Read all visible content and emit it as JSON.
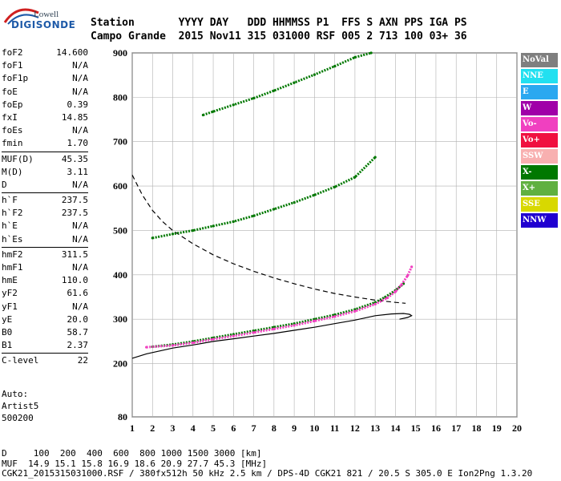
{
  "logo": {
    "line1": "Lowell",
    "line2": "DIGISONDE"
  },
  "header": {
    "labels": "Station       YYYY DAY   DDD HHMMSS P1  FFS S AXN PPS IGA PS",
    "values": "Campo Grande  2015 Nov11 315 031000 RSF 005 2 713 100 03+ 36"
  },
  "params": [
    {
      "key": "foF2",
      "value": "14.600"
    },
    {
      "key": "foF1",
      "value": "N/A"
    },
    {
      "key": "foF1p",
      "value": "N/A"
    },
    {
      "key": "foE",
      "value": "N/A"
    },
    {
      "key": "foEp",
      "value": "0.39"
    },
    {
      "key": "fxI",
      "value": "14.85"
    },
    {
      "key": "foEs",
      "value": "N/A"
    },
    {
      "key": "fmin",
      "value": "1.70"
    },
    {
      "key": "MUF(D)",
      "value": "45.35"
    },
    {
      "key": "M(D)",
      "value": "3.11"
    },
    {
      "key": "D",
      "value": "N/A"
    },
    {
      "key": "h`F",
      "value": "237.5"
    },
    {
      "key": "h`F2",
      "value": "237.5"
    },
    {
      "key": "h`E",
      "value": "N/A"
    },
    {
      "key": "h`Es",
      "value": "N/A"
    },
    {
      "key": "hmF2",
      "value": "311.5"
    },
    {
      "key": "hmF1",
      "value": "N/A"
    },
    {
      "key": "hmE",
      "value": "110.0"
    },
    {
      "key": "yF2",
      "value": "61.6"
    },
    {
      "key": "yF1",
      "value": "N/A"
    },
    {
      "key": "yE",
      "value": "20.0"
    },
    {
      "key": "B0",
      "value": "58.7"
    },
    {
      "key": "B1",
      "value": "2.37"
    },
    {
      "key": "C-level",
      "value": "22"
    }
  ],
  "auto": {
    "line1": "Auto:",
    "line2": "Artist5",
    "line3": "500200"
  },
  "legend": [
    {
      "label": "NoVal",
      "color": "#7f7f7f"
    },
    {
      "label": "NNE",
      "color": "#22e0f0"
    },
    {
      "label": "E",
      "color": "#2aa8f0"
    },
    {
      "label": "W",
      "color": "#a000a8"
    },
    {
      "label": "Vo-",
      "color": "#f040c0"
    },
    {
      "label": "Vo+",
      "color": "#f01040"
    },
    {
      "label": "SSW",
      "color": "#f8b0b0"
    },
    {
      "label": "X-",
      "color": "#007800"
    },
    {
      "label": "X+",
      "color": "#60b040"
    },
    {
      "label": "SSE",
      "color": "#d8d800"
    },
    {
      "label": "NNW",
      "color": "#2000d0"
    }
  ],
  "footer": {
    "line1": "D     100  200  400  600  800 1000 1500 3000 [km]",
    "line2": "MUF  14.9 15.1 15.8 16.9 18.6 20.9 27.7 45.3 [MHz]",
    "line3": "CGK21_2015315031000.RSF / 380fx512h 50 kHz 2.5 km / DPS-4D CGK21 821 / 20.5 S 305.0 E Ion2Png 1.3.20"
  },
  "chart_data": {
    "type": "scatter",
    "xlim": [
      1,
      20
    ],
    "ylim": [
      80,
      900
    ],
    "xticks": [
      1,
      2,
      3,
      4,
      5,
      6,
      7,
      8,
      9,
      10,
      11,
      12,
      13,
      14,
      15,
      16,
      17,
      18,
      19,
      20
    ],
    "yticks": [
      80,
      200,
      300,
      400,
      500,
      600,
      700,
      800,
      900
    ],
    "grid": true,
    "series": [
      {
        "name": "X-",
        "color": "#007800",
        "x": [
          2.0,
          3.0,
          4.0,
          5.0,
          6.0,
          7.0,
          8.0,
          9.0,
          10.0,
          11.0,
          12.0,
          13.0,
          13.5,
          14.0,
          14.4
        ],
        "y": [
          238,
          243,
          250,
          258,
          266,
          274,
          282,
          290,
          300,
          310,
          322,
          338,
          350,
          365,
          380
        ]
      },
      {
        "name": "Vo-",
        "color": "#f040c0",
        "x": [
          1.7,
          3.0,
          4.0,
          5.0,
          6.0,
          7.0,
          8.0,
          9.0,
          10.0,
          11.0,
          12.0,
          13.0,
          13.6,
          14.0,
          14.3,
          14.6,
          14.8
        ],
        "y": [
          237,
          241,
          247,
          255,
          262,
          270,
          278,
          286,
          296,
          306,
          318,
          334,
          348,
          362,
          378,
          398,
          418
        ]
      },
      {
        "name": "X-",
        "color": "#007800",
        "x": [
          2.0,
          3.0,
          4.0,
          5.0,
          6.0,
          7.0,
          8.0,
          9.0,
          10.0,
          11.0,
          12.0,
          13.0
        ],
        "y": [
          483,
          492,
          500,
          510,
          520,
          533,
          548,
          563,
          580,
          598,
          620,
          665
        ]
      },
      {
        "name": "X-",
        "color": "#007800",
        "x": [
          4.5,
          5.0,
          6.0,
          7.0,
          8.0,
          9.0,
          10.0,
          11.0,
          12.0,
          12.8
        ],
        "y": [
          760,
          768,
          783,
          798,
          815,
          833,
          851,
          870,
          890,
          900
        ]
      }
    ],
    "lines": [
      {
        "name": "profile",
        "color": "#000000",
        "dash": false,
        "x": [
          1.0,
          1.7,
          3,
          4,
          5,
          6,
          7,
          8,
          9,
          10,
          11,
          12,
          13,
          13.8,
          14.4,
          14.7,
          14.8,
          14.6,
          14.2
        ],
        "y": [
          212,
          222,
          235,
          242,
          250,
          256,
          262,
          268,
          275,
          282,
          290,
          298,
          308,
          312,
          313,
          311,
          308,
          304,
          300
        ]
      },
      {
        "name": "muf",
        "color": "#000000",
        "dash": true,
        "x": [
          1.0,
          1.5,
          2,
          2.5,
          3,
          4,
          5,
          6,
          7,
          8,
          9,
          10,
          11,
          12,
          13,
          14,
          14.5
        ],
        "y": [
          625,
          580,
          545,
          520,
          500,
          470,
          445,
          425,
          408,
          393,
          380,
          368,
          358,
          350,
          343,
          338,
          336
        ]
      }
    ]
  }
}
